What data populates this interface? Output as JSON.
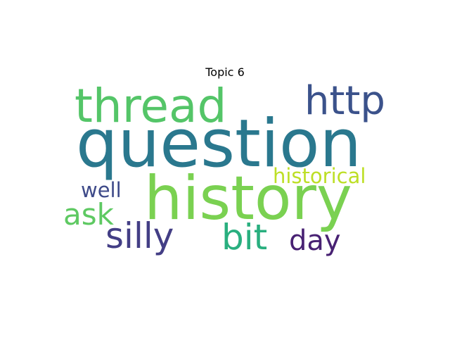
{
  "title": "Topic 6",
  "words": [
    {
      "key": "question",
      "text": "question",
      "color": "#2a788e"
    },
    {
      "key": "history",
      "text": "history",
      "color": "#7ad151"
    },
    {
      "key": "thread",
      "text": "thread",
      "color": "#54c568"
    },
    {
      "key": "http",
      "text": "http",
      "color": "#3b528b"
    },
    {
      "key": "silly",
      "text": "silly",
      "color": "#433e85"
    },
    {
      "key": "bit",
      "text": "bit",
      "color": "#29af7f"
    },
    {
      "key": "ask",
      "text": "ask",
      "color": "#5ec962"
    },
    {
      "key": "day",
      "text": "day",
      "color": "#482173"
    },
    {
      "key": "historical",
      "text": "historical",
      "color": "#bddf26"
    },
    {
      "key": "well",
      "text": "well",
      "color": "#3e4a89"
    }
  ]
}
